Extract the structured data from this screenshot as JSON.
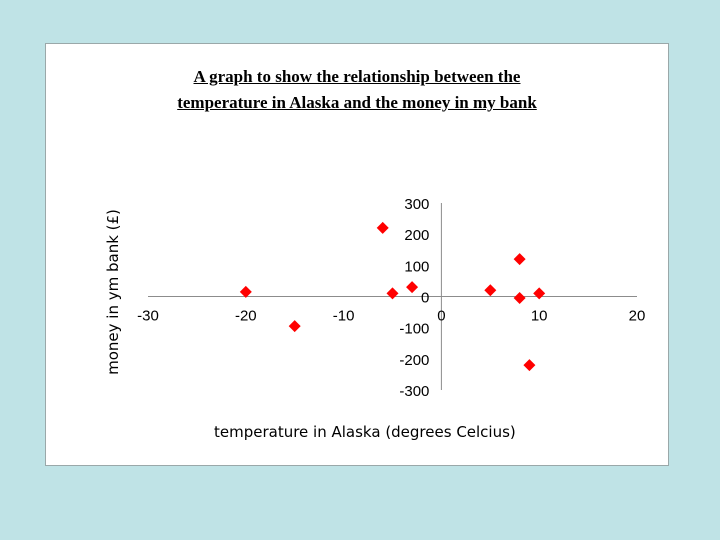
{
  "chart_data": {
    "type": "scatter",
    "title_line1": "A graph to show the relationship between the",
    "title_line2": "temperature in Alaska and the money in my bank",
    "xlabel": "temperature in Alaska (degrees Celcius)",
    "ylabel": "money in ym bank (£)",
    "xlim": [
      -30,
      20
    ],
    "ylim": [
      -300,
      300
    ],
    "x_ticks": [
      -30,
      -20,
      -10,
      0,
      10,
      20
    ],
    "y_ticks": [
      300,
      200,
      100,
      0,
      -100,
      -200,
      -300
    ],
    "grid": false,
    "legend": "none",
    "marker": "diamond",
    "marker_color": "#ff0000",
    "points": [
      {
        "x": -20,
        "y": 15
      },
      {
        "x": -15,
        "y": -95
      },
      {
        "x": -6,
        "y": 220
      },
      {
        "x": -5,
        "y": 10
      },
      {
        "x": -3,
        "y": 30
      },
      {
        "x": 5,
        "y": 20
      },
      {
        "x": 8,
        "y": 120
      },
      {
        "x": 8,
        "y": -5
      },
      {
        "x": 10,
        "y": 10
      },
      {
        "x": 9,
        "y": -220
      }
    ]
  }
}
